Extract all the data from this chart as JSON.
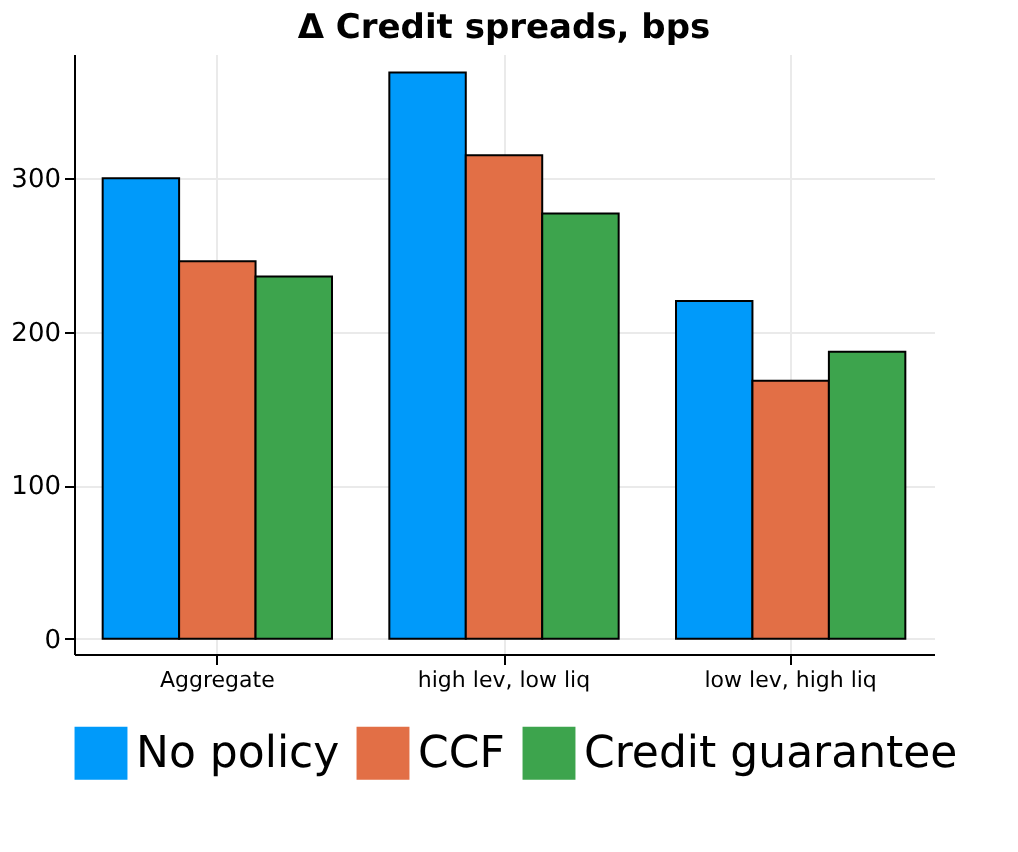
{
  "chart_data": {
    "type": "bar",
    "title": "Δ Credit spreads, bps",
    "categories": [
      "Aggregate",
      "high lev, low liq",
      "low lev, high liq"
    ],
    "series": [
      {
        "name": "No policy",
        "color": "#009afa",
        "values": [
          300,
          369,
          220
        ]
      },
      {
        "name": "CCF",
        "color": "#e26f46",
        "values": [
          246,
          315,
          168
        ]
      },
      {
        "name": "Credit guarantee",
        "color": "#3da44d",
        "values": [
          236,
          277,
          187
        ]
      }
    ],
    "ylim": [
      -10,
      381
    ],
    "yticks": [
      0,
      100,
      200,
      300
    ],
    "grid": true,
    "legend": "bottom"
  }
}
